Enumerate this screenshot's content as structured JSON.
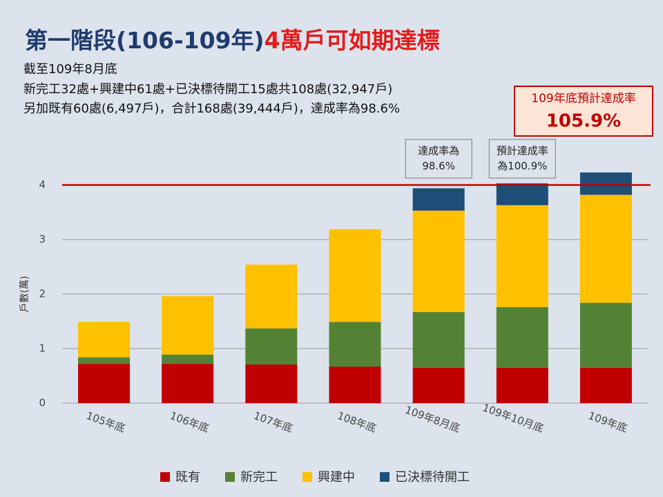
{
  "chart_data": {
    "type": "stacked_bar",
    "title": [
      "第一階段(106-109年)",
      "4萬戶可如期達標"
    ],
    "subtitle": [
      "截至109年8月底",
      "新完工32處+興建中61處+已決標待開工15處共108處(32,947戶)",
      "另加既有60處(6,497戶)，合計168處(39,444戶)，達成率為98.6%"
    ],
    "highlight": {
      "label": "109年底預計達成率",
      "value": "105.9%"
    },
    "annotations": [
      [
        "達成率為",
        "98.6%"
      ],
      [
        "預計達成率",
        "為100.9%"
      ]
    ],
    "y_label": "戶數(萬)",
    "categories": [
      "105年底",
      "106年底",
      "107年底",
      "108年底",
      "109年8月底",
      "109年10月底",
      "109年底"
    ],
    "series": [
      {
        "name": "既有",
        "color": "#c00000",
        "values": [
          0.72,
          0.72,
          0.71,
          0.67,
          0.65,
          0.65,
          0.65
        ]
      },
      {
        "name": "新完工",
        "color": "#548235",
        "values": [
          0.12,
          0.17,
          0.66,
          0.82,
          1.02,
          1.11,
          1.19
        ]
      },
      {
        "name": "興建中",
        "color": "#ffc000",
        "values": [
          0.65,
          1.07,
          1.17,
          1.7,
          1.86,
          1.87,
          1.98
        ]
      },
      {
        "name": "已決標待開工",
        "color": "#1f4e79",
        "values": [
          null,
          null,
          null,
          null,
          0.41,
          0.4,
          0.41
        ]
      }
    ],
    "target_line": 4,
    "target_color": "#c00000",
    "ylim": [
      0,
      4.0
    ],
    "yticks": [
      0,
      1,
      2,
      3,
      4
    ],
    "grid": true
  }
}
